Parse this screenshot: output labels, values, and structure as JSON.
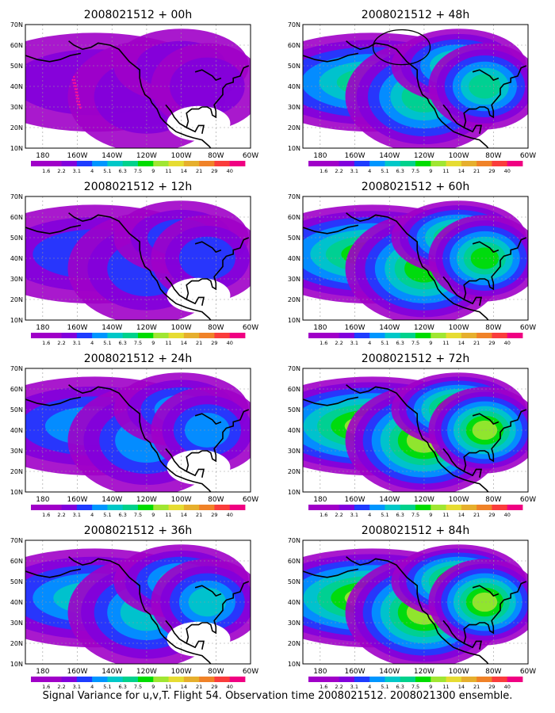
{
  "panels": [
    {
      "title": "2008021512 + 00h",
      "highlight": "track"
    },
    {
      "title": "2008021512 + 48h",
      "highlight": "circle"
    },
    {
      "title": "2008021512 + 12h"
    },
    {
      "title": "2008021512 + 60h"
    },
    {
      "title": "2008021512 + 24h"
    },
    {
      "title": "2008021512 + 72h"
    },
    {
      "title": "2008021512 + 36h"
    },
    {
      "title": "2008021512 + 84h"
    }
  ],
  "lat_labels": [
    "70N",
    "60N",
    "50N",
    "40N",
    "30N",
    "20N",
    "10N"
  ],
  "lon_labels": [
    "180",
    "160W",
    "140W",
    "120W",
    "100W",
    "80W",
    "60W"
  ],
  "colorbar": {
    "labels": [
      "1.6",
      "2.2",
      "3.1",
      "4",
      "5.1",
      "6.3",
      "7.5",
      "9",
      "11",
      "14",
      "21",
      "29",
      "40"
    ],
    "colors": [
      "#a000c8",
      "#8200dc",
      "#1e3cff",
      "#0096ff",
      "#00c8c8",
      "#00d28c",
      "#00dc00",
      "#a0e632",
      "#e6dc32",
      "#e6af2d",
      "#f08228",
      "#fa3c3c",
      "#f00082"
    ]
  },
  "caption": "Signal Variance for u,v,T. Flight 54. Observation time 2008021512. 2008021300 ensemble."
}
